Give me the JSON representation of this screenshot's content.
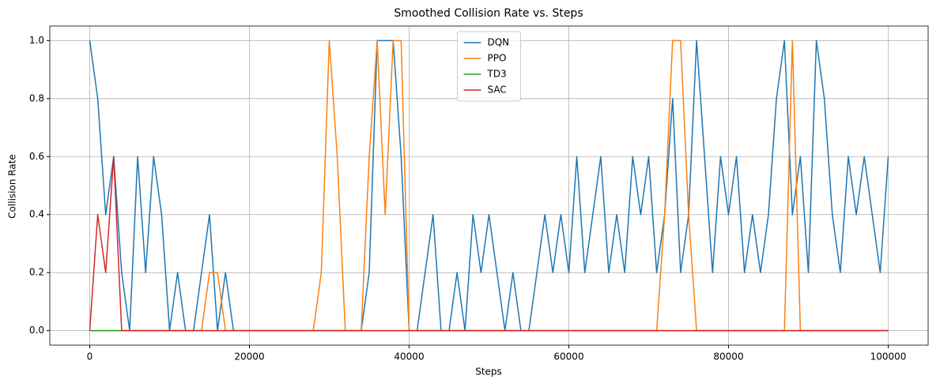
{
  "chart_data": {
    "type": "line",
    "title": "Smoothed Collision Rate vs. Steps",
    "xlabel": "Steps",
    "ylabel": "Collision Rate",
    "x": [
      0,
      1000,
      2000,
      3000,
      4000,
      5000,
      6000,
      7000,
      8000,
      9000,
      10000,
      11000,
      12000,
      13000,
      14000,
      15000,
      16000,
      17000,
      18000,
      19000,
      20000,
      21000,
      22000,
      23000,
      24000,
      25000,
      26000,
      27000,
      28000,
      29000,
      30000,
      31000,
      32000,
      33000,
      34000,
      35000,
      36000,
      37000,
      38000,
      39000,
      40000,
      41000,
      42000,
      43000,
      44000,
      45000,
      46000,
      47000,
      48000,
      49000,
      50000,
      51000,
      52000,
      53000,
      54000,
      55000,
      56000,
      57000,
      58000,
      59000,
      60000,
      61000,
      62000,
      63000,
      64000,
      65000,
      66000,
      67000,
      68000,
      69000,
      70000,
      71000,
      72000,
      73000,
      74000,
      75000,
      76000,
      77000,
      78000,
      79000,
      80000,
      81000,
      82000,
      83000,
      84000,
      85000,
      86000,
      87000,
      88000,
      89000,
      90000,
      91000,
      92000,
      93000,
      94000,
      95000,
      96000,
      97000,
      98000,
      99000,
      100000
    ],
    "series": [
      {
        "name": "DQN",
        "color": "#1f77b4",
        "values": [
          1.0,
          0.8,
          0.4,
          0.6,
          0.2,
          0,
          0.6,
          0.2,
          0.6,
          0.4,
          0,
          0.2,
          0,
          0,
          0.2,
          0.4,
          0,
          0.2,
          0,
          0,
          0,
          0,
          0,
          0,
          0,
          0,
          0,
          0,
          0,
          0,
          0,
          0,
          0,
          0,
          0,
          0.2,
          1.0,
          1.0,
          1.0,
          0.6,
          0,
          0,
          0.2,
          0.4,
          0,
          0,
          0.2,
          0,
          0.4,
          0.2,
          0.4,
          0.2,
          0,
          0.2,
          0,
          0,
          0.2,
          0.4,
          0.2,
          0.4,
          0.2,
          0.6,
          0.2,
          0.4,
          0.6,
          0.2,
          0.4,
          0.2,
          0.6,
          0.4,
          0.6,
          0.2,
          0.4,
          0.8,
          0.2,
          0.4,
          1.0,
          0.6,
          0.2,
          0.6,
          0.4,
          0.6,
          0.2,
          0.4,
          0.2,
          0.4,
          0.8,
          1.0,
          0.4,
          0.6,
          0.2,
          1.0,
          0.8,
          0.4,
          0.2,
          0.6,
          0.4,
          0.6,
          0.4,
          0.2,
          0.6
        ]
      },
      {
        "name": "PPO",
        "color": "#ff7f0e",
        "values": [
          0,
          0,
          0,
          0,
          0,
          0,
          0,
          0,
          0,
          0,
          0,
          0,
          0,
          0,
          0,
          0.2,
          0.2,
          0,
          0,
          0,
          0,
          0,
          0,
          0,
          0,
          0,
          0,
          0,
          0,
          0.2,
          1.0,
          0.6,
          0,
          0,
          0,
          0.6,
          1.0,
          0.4,
          1.0,
          1.0,
          0,
          0,
          0,
          0,
          0,
          0,
          0,
          0,
          0,
          0,
          0,
          0,
          0,
          0,
          0,
          0,
          0,
          0,
          0,
          0,
          0,
          0,
          0,
          0,
          0,
          0,
          0,
          0,
          0,
          0,
          0,
          0,
          0.4,
          1.0,
          1.0,
          0.4,
          0,
          0,
          0,
          0,
          0,
          0,
          0,
          0,
          0,
          0,
          0,
          0,
          1.0,
          0,
          0,
          0,
          0,
          0,
          0,
          0,
          0,
          0,
          0,
          0,
          0
        ]
      },
      {
        "name": "TD3",
        "color": "#2ca02c",
        "values": [
          0,
          0,
          0,
          0,
          0,
          0,
          0,
          0,
          0,
          0,
          0,
          0,
          0,
          0,
          0,
          0,
          0,
          0,
          0,
          0,
          0,
          0,
          0,
          0,
          0,
          0,
          0,
          0,
          0,
          0,
          0,
          0,
          0,
          0,
          0,
          0,
          0,
          0,
          0,
          0,
          0,
          0,
          0,
          0,
          0,
          0,
          0,
          0,
          0,
          0,
          0,
          0,
          0,
          0,
          0,
          0,
          0,
          0,
          0,
          0,
          0,
          0,
          0,
          0,
          0,
          0,
          0,
          0,
          0,
          0,
          0,
          0,
          0,
          0,
          0,
          0,
          0,
          0,
          0,
          0,
          0,
          0,
          0,
          0,
          0,
          0,
          0,
          0,
          0,
          0,
          0,
          0,
          0,
          0,
          0,
          0,
          0,
          0,
          0,
          0,
          0
        ]
      },
      {
        "name": "SAC",
        "color": "#d62728",
        "values": [
          0,
          0.4,
          0.2,
          0.6,
          0,
          0,
          0,
          0,
          0,
          0,
          0,
          0,
          0,
          0,
          0,
          0,
          0,
          0,
          0,
          0,
          0,
          0,
          0,
          0,
          0,
          0,
          0,
          0,
          0,
          0,
          0,
          0,
          0,
          0,
          0,
          0,
          0,
          0,
          0,
          0,
          0,
          0,
          0,
          0,
          0,
          0,
          0,
          0,
          0,
          0,
          0,
          0,
          0,
          0,
          0,
          0,
          0,
          0,
          0,
          0,
          0,
          0,
          0,
          0,
          0,
          0,
          0,
          0,
          0,
          0,
          0,
          0,
          0,
          0,
          0,
          0,
          0,
          0,
          0,
          0,
          0,
          0,
          0,
          0,
          0,
          0,
          0,
          0,
          0,
          0,
          0,
          0,
          0,
          0,
          0,
          0,
          0,
          0,
          0,
          0,
          0
        ]
      }
    ],
    "xlim": [
      -5000,
      105000
    ],
    "ylim": [
      -0.05,
      1.05
    ],
    "xticks": [
      0,
      20000,
      40000,
      60000,
      80000,
      100000
    ],
    "yticks": [
      {
        "value": 0,
        "label": "0.0"
      },
      {
        "value": 0.2,
        "label": "0.2"
      },
      {
        "value": 0.4,
        "label": "0.4"
      },
      {
        "value": 0.6,
        "label": "0.6"
      },
      {
        "value": 0.8,
        "label": "0.8"
      },
      {
        "value": 1.0,
        "label": "1.0"
      }
    ],
    "grid": true,
    "legend": "upper center"
  }
}
